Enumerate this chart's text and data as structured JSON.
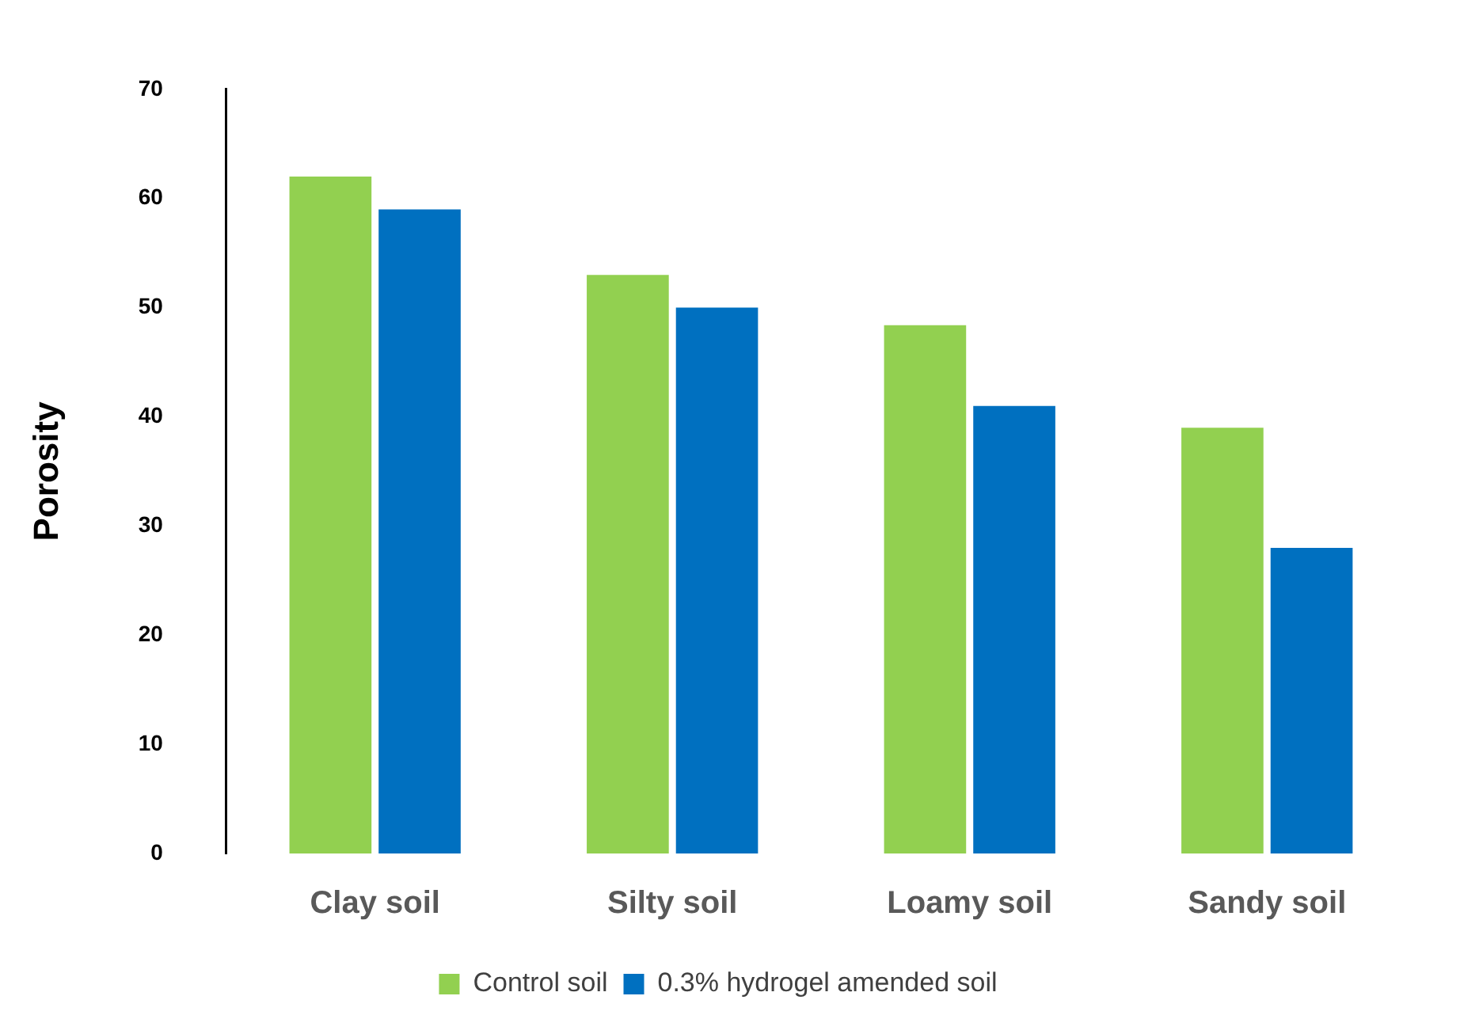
{
  "chart_data": {
    "type": "bar",
    "ylabel": "Porosity",
    "categories": [
      "Clay soil",
      "Silty soil",
      "Loamy soil",
      "Sandy soil"
    ],
    "series": [
      {
        "name": "Control soil",
        "color": "#92d050",
        "values": [
          62,
          53,
          48.4,
          39
        ]
      },
      {
        "name": "0.3% hydrogel amended soil",
        "color": "#0070c0",
        "values": [
          59,
          50,
          41,
          28
        ]
      }
    ],
    "ylim": [
      0,
      70
    ],
    "yticks": [
      0,
      10,
      20,
      30,
      40,
      50,
      60,
      70
    ],
    "grid": false,
    "legend": "bottom"
  }
}
